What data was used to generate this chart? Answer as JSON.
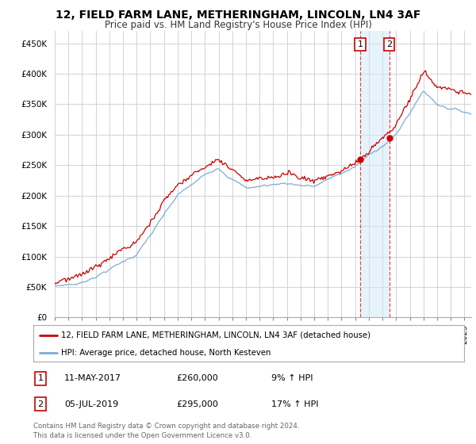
{
  "title": "12, FIELD FARM LANE, METHERINGHAM, LINCOLN, LN4 3AF",
  "subtitle": "Price paid vs. HM Land Registry's House Price Index (HPI)",
  "title_fontsize": 10,
  "subtitle_fontsize": 8.5,
  "ylabel_ticks": [
    "£0",
    "£50K",
    "£100K",
    "£150K",
    "£200K",
    "£250K",
    "£300K",
    "£350K",
    "£400K",
    "£450K"
  ],
  "ytick_values": [
    0,
    50000,
    100000,
    150000,
    200000,
    250000,
    300000,
    350000,
    400000,
    450000
  ],
  "ylim": [
    0,
    470000
  ],
  "xlim_start": 1995.0,
  "xlim_end": 2025.5,
  "background_color": "#ffffff",
  "grid_color": "#cccccc",
  "red_line_color": "#cc0000",
  "blue_line_color": "#7aadd4",
  "marker1_date": 2017.37,
  "marker1_price": 260000,
  "marker2_date": 2019.5,
  "marker2_price": 295000,
  "vspan_color": "#d0e8f8",
  "vline_color": "#cc3333",
  "legend_red_label": "12, FIELD FARM LANE, METHERINGHAM, LINCOLN, LN4 3AF (detached house)",
  "legend_blue_label": "HPI: Average price, detached house, North Kesteven",
  "table_row1": [
    "1",
    "11-MAY-2017",
    "£260,000",
    "9% ↑ HPI"
  ],
  "table_row2": [
    "2",
    "05-JUL-2019",
    "£295,000",
    "17% ↑ HPI"
  ],
  "footer": "Contains HM Land Registry data © Crown copyright and database right 2024.\nThis data is licensed under the Open Government Licence v3.0.",
  "marker_box_color": "#cc0000"
}
